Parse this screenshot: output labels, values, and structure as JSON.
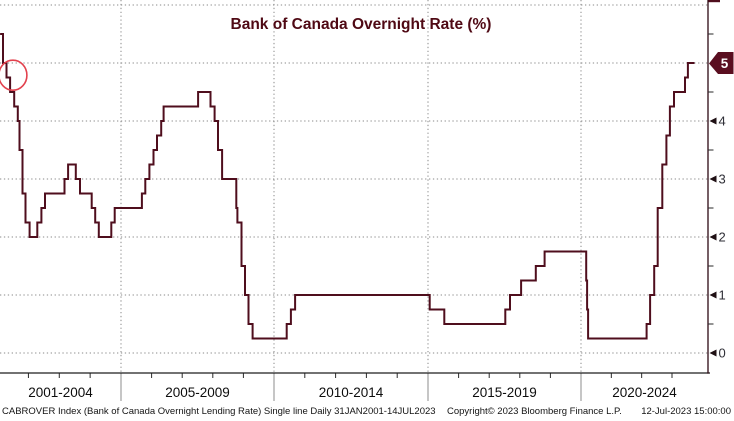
{
  "title": "Bank of Canada Overnight Rate (%)",
  "colors": {
    "line": "#4f0e1d",
    "title": "#4f0914",
    "badge_bg": "#5a0e20",
    "badge_text": "#ffffff",
    "annotation": "#e2414d",
    "grid": "#8a8a8a",
    "axis": "#1d1d1d",
    "tick_label": "#2e2e36",
    "x_label": "#0d0d0d",
    "footer_text": "#141414"
  },
  "y_axis": {
    "tick_labels": [
      "0",
      "1",
      "2",
      "3",
      "4"
    ],
    "tick_values": [
      0,
      1,
      2,
      3,
      4
    ],
    "minor_tick_values": [
      0.5,
      1.5,
      2.5,
      3.5,
      4.5,
      5.5
    ],
    "gridline_values": [
      0,
      1,
      2,
      3,
      4,
      5,
      6
    ],
    "last_value_badge": "5",
    "last_value": 5.0
  },
  "x_axis": {
    "section_labels": [
      "2001-2004",
      "2005-2009",
      "2010-2014",
      "2015-2019",
      "2020-2024"
    ],
    "minor_tick_years": [
      2002,
      2003,
      2004,
      2006,
      2007,
      2008,
      2009,
      2011,
      2012,
      2013,
      2014,
      2016,
      2017,
      2018,
      2019,
      2021,
      2022,
      2023
    ],
    "divider_years": [
      2005,
      2010,
      2015,
      2020
    ]
  },
  "annotation": {
    "shape": "ellipse-highlight",
    "date": "2001-07-01",
    "value": 4.79
  },
  "footer": {
    "left": "CABROVER Index (Bank of Canada Overnight Lending Rate) Single line  Daily 31JAN2001-14JUL2023",
    "copyright": "Copyright© 2023 Bloomberg Finance L.P.",
    "timestamp": "12-Jul-2023 15:00:00"
  },
  "chart_data": {
    "type": "line",
    "step": true,
    "title": "Bank of Canada Overnight Rate (%)",
    "ylabel": "",
    "xlabel": "",
    "ylim": [
      -0.35,
      6.1
    ],
    "x_range": [
      "2001-01-31",
      "2023-07-14"
    ],
    "grid": "dotted",
    "legend_position": "none",
    "series": [
      {
        "name": "CABROVER Index",
        "points": [
          [
            "2001-01-31",
            5.5
          ],
          [
            "2001-03-06",
            5.0
          ],
          [
            "2001-04-17",
            4.75
          ],
          [
            "2001-05-29",
            4.5
          ],
          [
            "2001-07-17",
            4.25
          ],
          [
            "2001-08-28",
            4.0
          ],
          [
            "2001-09-17",
            3.5
          ],
          [
            "2001-10-23",
            2.75
          ],
          [
            "2001-11-27",
            2.25
          ],
          [
            "2002-01-15",
            2.0
          ],
          [
            "2002-04-16",
            2.25
          ],
          [
            "2002-06-04",
            2.5
          ],
          [
            "2002-07-16",
            2.75
          ],
          [
            "2003-03-04",
            3.0
          ],
          [
            "2003-04-15",
            3.25
          ],
          [
            "2003-07-15",
            3.0
          ],
          [
            "2003-09-03",
            2.75
          ],
          [
            "2004-01-20",
            2.5
          ],
          [
            "2004-03-02",
            2.25
          ],
          [
            "2004-04-13",
            2.0
          ],
          [
            "2004-09-08",
            2.25
          ],
          [
            "2004-10-19",
            2.5
          ],
          [
            "2005-09-07",
            2.75
          ],
          [
            "2005-10-18",
            3.0
          ],
          [
            "2005-12-06",
            3.25
          ],
          [
            "2006-01-24",
            3.5
          ],
          [
            "2006-03-07",
            3.75
          ],
          [
            "2006-04-25",
            4.0
          ],
          [
            "2006-05-24",
            4.25
          ],
          [
            "2007-07-10",
            4.5
          ],
          [
            "2007-12-04",
            4.25
          ],
          [
            "2008-01-22",
            4.0
          ],
          [
            "2008-03-04",
            3.5
          ],
          [
            "2008-04-22",
            3.0
          ],
          [
            "2008-10-08",
            2.5
          ],
          [
            "2008-10-21",
            2.25
          ],
          [
            "2008-12-09",
            1.5
          ],
          [
            "2009-01-20",
            1.0
          ],
          [
            "2009-03-03",
            0.5
          ],
          [
            "2009-04-21",
            0.25
          ],
          [
            "2010-06-01",
            0.5
          ],
          [
            "2010-07-20",
            0.75
          ],
          [
            "2010-09-08",
            1.0
          ],
          [
            "2015-01-21",
            0.75
          ],
          [
            "2015-07-15",
            0.5
          ],
          [
            "2017-07-12",
            0.75
          ],
          [
            "2017-09-06",
            1.0
          ],
          [
            "2018-01-17",
            1.25
          ],
          [
            "2018-07-11",
            1.5
          ],
          [
            "2018-10-24",
            1.75
          ],
          [
            "2020-03-04",
            1.25
          ],
          [
            "2020-03-16",
            0.75
          ],
          [
            "2020-03-27",
            0.25
          ],
          [
            "2022-03-02",
            0.5
          ],
          [
            "2022-04-13",
            1.0
          ],
          [
            "2022-06-01",
            1.5
          ],
          [
            "2022-07-13",
            2.5
          ],
          [
            "2022-09-07",
            3.25
          ],
          [
            "2022-10-26",
            3.75
          ],
          [
            "2022-12-07",
            4.25
          ],
          [
            "2023-01-25",
            4.5
          ],
          [
            "2023-06-07",
            4.75
          ],
          [
            "2023-07-12",
            5.0
          ],
          [
            "2023-07-14",
            5.0
          ]
        ]
      }
    ]
  }
}
